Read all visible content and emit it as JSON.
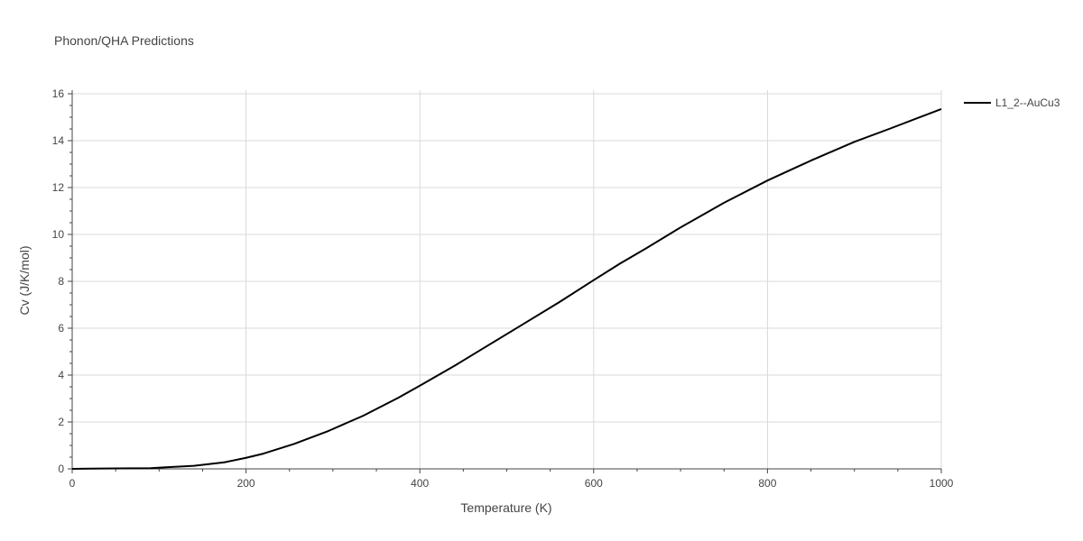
{
  "chart_data": {
    "type": "line",
    "title": "Phonon/QHA Predictions",
    "xlabel": "Temperature (K)",
    "ylabel": "Cv (J/K/mol)",
    "xlim": [
      0,
      1000
    ],
    "ylim": [
      0,
      16
    ],
    "x_ticks": [
      "0",
      "200",
      "400",
      "600",
      "800",
      "1000"
    ],
    "y_ticks": [
      "0",
      "2",
      "4",
      "6",
      "8",
      "10",
      "12",
      "14",
      "16"
    ],
    "grid": true,
    "legend_position": "right",
    "series": [
      {
        "name": "L1_2--AuCu3",
        "color": "#000000",
        "x": [
          0,
          20,
          50,
          90,
          110,
          140,
          175,
          200,
          220,
          255,
          295,
          335,
          375,
          400,
          440,
          480,
          520,
          560,
          600,
          630,
          660,
          700,
          750,
          800,
          850,
          900,
          940,
          1000
        ],
        "y": [
          0,
          0.01,
          0.02,
          0.03,
          0.07,
          0.13,
          0.28,
          0.47,
          0.65,
          1.06,
          1.62,
          2.27,
          3.03,
          3.55,
          4.4,
          5.3,
          6.2,
          7.1,
          8.05,
          8.75,
          9.4,
          10.3,
          11.35,
          12.3,
          13.15,
          13.95,
          14.5,
          15.35
        ]
      }
    ]
  }
}
